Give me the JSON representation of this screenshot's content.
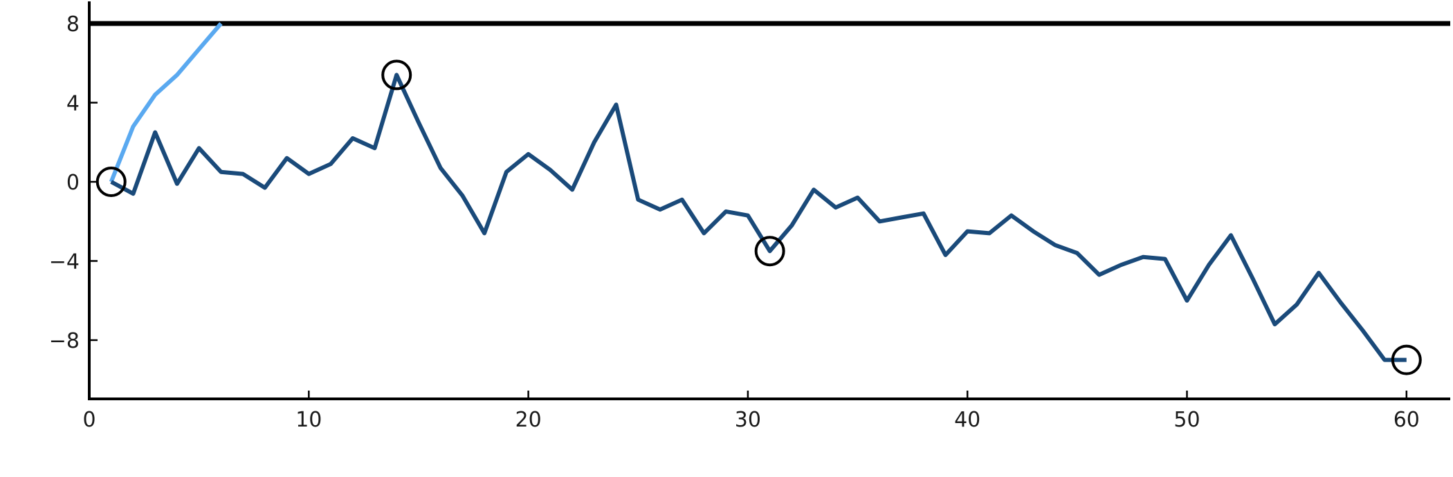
{
  "chart_data": {
    "type": "line",
    "title": "",
    "xlabel": "",
    "ylabel": "",
    "xlim": [
      0,
      62
    ],
    "ylim": [
      -11,
      9
    ],
    "x_ticks": [
      0,
      10,
      20,
      30,
      40,
      50,
      60
    ],
    "x_tick_labels": [
      "0",
      "10",
      "20",
      "30",
      "40",
      "50",
      "60"
    ],
    "y_ticks": [
      8,
      4,
      0,
      -4,
      -8
    ],
    "y_tick_labels": [
      "8",
      "4",
      "0",
      "−4",
      "−8"
    ],
    "grid": false,
    "legend": false,
    "reference_line": {
      "y": 8,
      "color": "#000000"
    },
    "series": [
      {
        "color": "#1a4a7a",
        "x": [
          1,
          2,
          3,
          4,
          5,
          6,
          7,
          8,
          9,
          10,
          11,
          12,
          13,
          14,
          15,
          16,
          17,
          18,
          19,
          20,
          21,
          22,
          23,
          24,
          25,
          26,
          27,
          28,
          29,
          30,
          31,
          32,
          33,
          34,
          35,
          36,
          37,
          38,
          39,
          40,
          41,
          42,
          43,
          44,
          45,
          46,
          47,
          48,
          49,
          50,
          51,
          52,
          53,
          54,
          55,
          56,
          57,
          58,
          59,
          60
        ],
        "y": [
          0,
          -0.6,
          2.5,
          -0.1,
          1.7,
          0.5,
          0.4,
          -0.3,
          1.2,
          0.4,
          0.9,
          2.2,
          1.7,
          5.4,
          3.0,
          0.7,
          -0.7,
          -2.6,
          0.5,
          1.4,
          0.6,
          -0.4,
          2.0,
          3.9,
          -0.9,
          -1.4,
          -0.9,
          -2.6,
          -1.5,
          -1.7,
          -3.5,
          -2.2,
          -0.4,
          -1.3,
          -0.8,
          -2.0,
          -1.8,
          -1.6,
          -3.7,
          -2.5,
          -2.6,
          -1.7,
          -2.5,
          -3.2,
          -3.6,
          -4.7,
          -4.2,
          -3.8,
          -3.9,
          -6.0,
          -4.2,
          -2.7,
          -4.9,
          -7.2,
          -6.2,
          -4.6,
          -6.1,
          -7.5,
          -9.0,
          -9.0
        ],
        "markers": [
          {
            "x": 1,
            "y": 0
          },
          {
            "x": 14,
            "y": 5.4
          },
          {
            "x": 31,
            "y": -3.5
          },
          {
            "x": 60,
            "y": -9.0
          }
        ]
      },
      {
        "color": "#5aa9f0",
        "x": [
          1,
          2,
          3,
          4,
          5,
          6
        ],
        "y": [
          0,
          2.8,
          4.4,
          5.4,
          6.7,
          8.0
        ]
      }
    ]
  }
}
